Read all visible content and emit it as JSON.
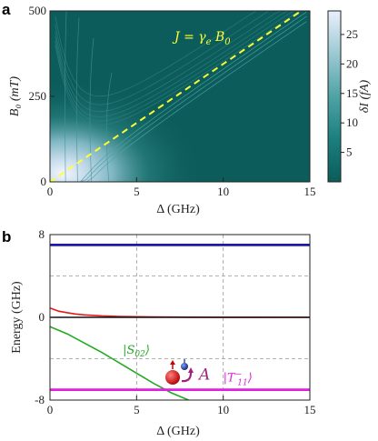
{
  "panels": {
    "a_letter": "a",
    "b_letter": "b"
  },
  "chart_data": [
    {
      "panel": "a",
      "type": "heatmap",
      "title": "",
      "xlabel": "Δ (GHz)",
      "ylabel": "B₀ (mT)",
      "xlim": [
        0,
        15
      ],
      "ylim": [
        0,
        500
      ],
      "x_ticks": [
        0,
        5,
        10,
        15
      ],
      "y_ticks": [
        0,
        250,
        500
      ],
      "colorbar": {
        "label": "δI (fA)",
        "ticks": [
          5,
          10,
          15,
          20,
          25
        ],
        "range": [
          0,
          29
        ],
        "colors": [
          "#0b5c5a",
          "#1b7f7e",
          "#4fa3a5",
          "#9cc9d3",
          "#e9f0fb"
        ]
      },
      "annotation": {
        "text_main": "J = γ",
        "text_sub1": "e",
        "text_mid": " B",
        "text_sub2": "0",
        "color": "#ffff33"
      },
      "dashed_line": {
        "label": "J = γe B0",
        "points": [
          [
            0,
            0
          ],
          [
            14.5,
            500
          ]
        ],
        "color": "#ffff33"
      },
      "background_color": "#0b5c5a"
    },
    {
      "panel": "b",
      "type": "line",
      "title": "",
      "xlabel": "Δ (GHz)",
      "ylabel": "Energy (GHz)",
      "xlim": [
        0,
        15
      ],
      "ylim": [
        -8,
        8
      ],
      "x_ticks": [
        0,
        5,
        10,
        15
      ],
      "y_ticks": [
        -8,
        0,
        8
      ],
      "grid": true,
      "series": [
        {
          "color": "#1a1aa6",
          "x": [
            0,
            15
          ],
          "y": [
            7,
            7
          ]
        },
        {
          "color": "#e8191c",
          "x": [
            0,
            0.5,
            1,
            1.5,
            2,
            3,
            4,
            5,
            6,
            8,
            10,
            12,
            15
          ],
          "y": [
            0.9,
            0.6,
            0.45,
            0.32,
            0.24,
            0.14,
            0.09,
            0.06,
            0.04,
            0.02,
            0.01,
            0.005,
            0.0
          ]
        },
        {
          "color": "#111111",
          "x": [
            0,
            15
          ],
          "y": [
            0,
            0
          ]
        },
        {
          "color": "#22aa22",
          "x": [
            0,
            1,
            2,
            3,
            4,
            5,
            6,
            7,
            8
          ],
          "y": [
            -0.9,
            -1.6,
            -2.5,
            -3.4,
            -4.4,
            -5.4,
            -6.4,
            -7.3,
            -8.0
          ]
        },
        {
          "color": "#e01fe0",
          "x": [
            0,
            15
          ],
          "y": [
            -7,
            -7
          ]
        }
      ],
      "labels": {
        "s02": {
          "text_main": "|S",
          "text_sub": "02",
          "text_end": "⟩",
          "color": "#22aa22",
          "x": 4.2,
          "y": -3.5
        },
        "t11": {
          "text_main": "|T",
          "text_sup": "−",
          "text_sub": "11",
          "text_end": "⟩",
          "color": "#e01fe0",
          "x": 10.0,
          "y": -6.2
        },
        "A": {
          "text": "A",
          "color": "#a0237a",
          "x": 8.6,
          "y": -6.0
        }
      }
    }
  ]
}
